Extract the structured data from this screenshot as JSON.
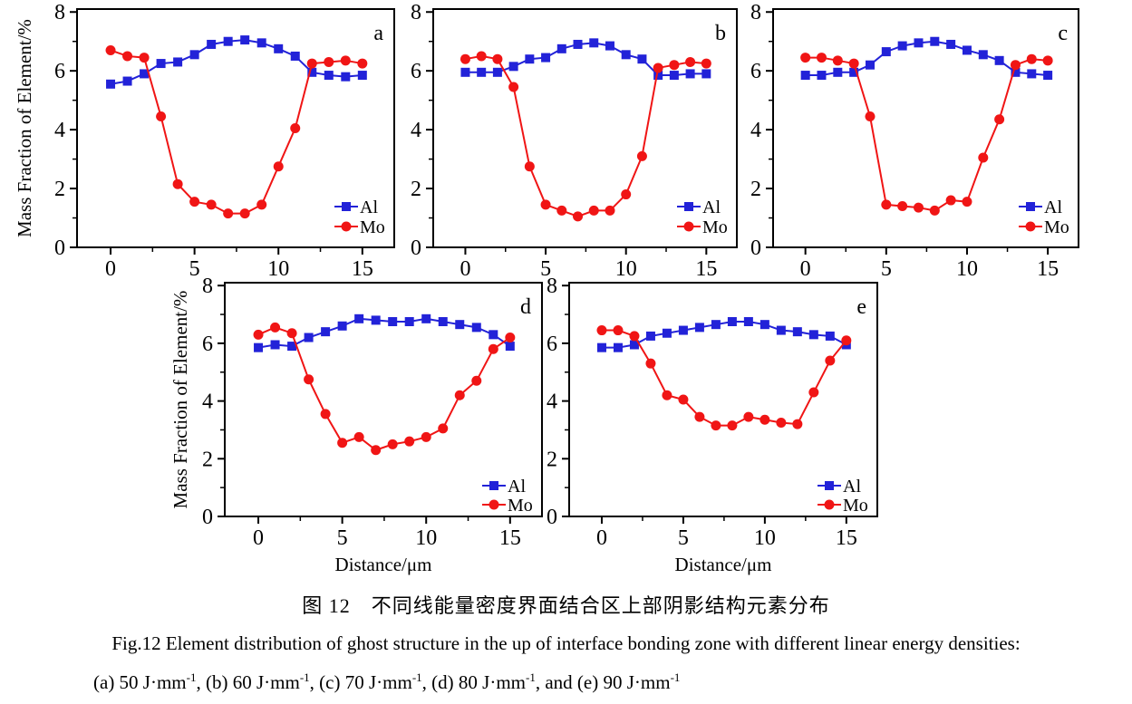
{
  "figure": {
    "caption_cn": "图 12　不同线能量密度界面结合区上部阴影结构元素分布",
    "caption_en": "Fig.12  Element distribution of ghost structure in the up of interface bonding zone with different linear energy densities:",
    "caption_energy_segments": [
      {
        "text": "(a) 50 J·mm"
      },
      {
        "text": "-1",
        "sup": true
      },
      {
        "text": ", (b) 60 J·mm"
      },
      {
        "text": "-1",
        "sup": true
      },
      {
        "text": ", (c) 70 J·mm"
      },
      {
        "text": "-1",
        "sup": true
      },
      {
        "text": ", (d) 80 J·mm"
      },
      {
        "text": "-1",
        "sup": true
      },
      {
        "text": ", and (e) 90 J·mm"
      },
      {
        "text": "-1",
        "sup": true
      }
    ]
  },
  "colors": {
    "al": "#2222d8",
    "mo": "#f01515",
    "axis": "#000000"
  },
  "chart_data": [
    {
      "type": "line",
      "panel_label": "a",
      "title": "",
      "xlabel": "",
      "ylabel": "Mass Fraction of Element/%",
      "x": [
        0,
        1,
        2,
        3,
        4,
        5,
        6,
        7,
        8,
        9,
        10,
        11,
        12,
        13,
        14,
        15
      ],
      "series": [
        {
          "name": "Al",
          "color": "#2222d8",
          "marker": "square",
          "values": [
            5.55,
            5.65,
            5.9,
            6.25,
            6.3,
            6.55,
            6.9,
            7.0,
            7.05,
            6.95,
            6.75,
            6.5,
            5.95,
            5.85,
            5.8,
            5.85
          ]
        },
        {
          "name": "Mo",
          "color": "#f01515",
          "marker": "circle",
          "values": [
            6.7,
            6.5,
            6.45,
            4.45,
            2.15,
            1.55,
            1.45,
            1.15,
            1.15,
            1.45,
            2.75,
            4.05,
            6.25,
            6.3,
            6.35,
            6.25
          ]
        }
      ],
      "xticks": [
        0,
        5,
        10,
        15
      ],
      "yticks": [
        0,
        2,
        4,
        6,
        8
      ],
      "xlim": [
        -2,
        16.9
      ],
      "ylim": [
        0,
        8.1
      ],
      "grid": false,
      "legend_position": "lower right"
    },
    {
      "type": "line",
      "panel_label": "b",
      "title": "",
      "xlabel": "",
      "ylabel": "",
      "x": [
        0,
        1,
        2,
        3,
        4,
        5,
        6,
        7,
        8,
        9,
        10,
        11,
        12,
        13,
        14,
        15
      ],
      "series": [
        {
          "name": "Al",
          "color": "#2222d8",
          "marker": "square",
          "values": [
            5.95,
            5.95,
            5.95,
            6.15,
            6.4,
            6.45,
            6.75,
            6.9,
            6.95,
            6.85,
            6.55,
            6.4,
            5.85,
            5.85,
            5.9,
            5.9
          ]
        },
        {
          "name": "Mo",
          "color": "#f01515",
          "marker": "circle",
          "values": [
            6.4,
            6.5,
            6.4,
            5.45,
            2.75,
            1.45,
            1.25,
            1.05,
            1.25,
            1.25,
            1.8,
            3.1,
            6.1,
            6.2,
            6.3,
            6.25
          ]
        }
      ],
      "xticks": [
        0,
        5,
        10,
        15
      ],
      "yticks": [
        0,
        2,
        4,
        6,
        8
      ],
      "xlim": [
        -2,
        16.9
      ],
      "ylim": [
        0,
        8.1
      ],
      "grid": false,
      "legend_position": "lower right"
    },
    {
      "type": "line",
      "panel_label": "c",
      "title": "",
      "xlabel": "",
      "ylabel": "",
      "x": [
        0,
        1,
        2,
        3,
        4,
        5,
        6,
        7,
        8,
        9,
        10,
        11,
        12,
        13,
        14,
        15
      ],
      "series": [
        {
          "name": "Al",
          "color": "#2222d8",
          "marker": "square",
          "values": [
            5.85,
            5.85,
            5.95,
            5.95,
            6.2,
            6.65,
            6.85,
            6.95,
            7.0,
            6.9,
            6.7,
            6.55,
            6.35,
            5.95,
            5.9,
            5.85
          ]
        },
        {
          "name": "Mo",
          "color": "#f01515",
          "marker": "circle",
          "values": [
            6.45,
            6.45,
            6.35,
            6.25,
            4.45,
            1.45,
            1.4,
            1.35,
            1.25,
            1.6,
            1.55,
            3.05,
            4.35,
            6.2,
            6.4,
            6.35
          ]
        }
      ],
      "xticks": [
        0,
        5,
        10,
        15
      ],
      "yticks": [
        0,
        2,
        4,
        6,
        8
      ],
      "xlim": [
        -2,
        16.9
      ],
      "ylim": [
        0,
        8.1
      ],
      "grid": false,
      "legend_position": "lower right"
    },
    {
      "type": "line",
      "panel_label": "d",
      "title": "",
      "xlabel": "Distance/μm",
      "ylabel": "Mass Fraction of Element/%",
      "x": [
        0,
        1,
        2,
        3,
        4,
        5,
        6,
        7,
        8,
        9,
        10,
        11,
        12,
        13,
        14,
        15
      ],
      "series": [
        {
          "name": "Al",
          "color": "#2222d8",
          "marker": "square",
          "values": [
            5.85,
            5.95,
            5.9,
            6.2,
            6.4,
            6.6,
            6.85,
            6.8,
            6.75,
            6.75,
            6.85,
            6.75,
            6.65,
            6.55,
            6.3,
            5.9
          ]
        },
        {
          "name": "Mo",
          "color": "#f01515",
          "marker": "circle",
          "values": [
            6.3,
            6.55,
            6.35,
            4.75,
            3.55,
            2.55,
            2.75,
            2.3,
            2.5,
            2.6,
            2.75,
            3.05,
            4.2,
            4.7,
            5.8,
            6.2
          ]
        }
      ],
      "xticks": [
        0,
        5,
        10,
        15
      ],
      "yticks": [
        0,
        2,
        4,
        6,
        8
      ],
      "xlim": [
        -2,
        16.9
      ],
      "ylim": [
        0,
        8.1
      ],
      "grid": false,
      "legend_position": "lower right"
    },
    {
      "type": "line",
      "panel_label": "e",
      "title": "",
      "xlabel": "Distance/μm",
      "ylabel": "",
      "x": [
        0,
        1,
        2,
        3,
        4,
        5,
        6,
        7,
        8,
        9,
        10,
        11,
        12,
        13,
        14,
        15
      ],
      "series": [
        {
          "name": "Al",
          "color": "#2222d8",
          "marker": "square",
          "values": [
            5.85,
            5.85,
            5.95,
            6.25,
            6.35,
            6.45,
            6.55,
            6.65,
            6.75,
            6.75,
            6.65,
            6.45,
            6.4,
            6.3,
            6.25,
            5.95
          ]
        },
        {
          "name": "Mo",
          "color": "#f01515",
          "marker": "circle",
          "values": [
            6.45,
            6.45,
            6.25,
            5.3,
            4.2,
            4.05,
            3.45,
            3.15,
            3.15,
            3.45,
            3.35,
            3.25,
            3.2,
            4.3,
            5.4,
            6.1
          ]
        }
      ],
      "xticks": [
        0,
        5,
        10,
        15
      ],
      "yticks": [
        0,
        2,
        4,
        6,
        8
      ],
      "xlim": [
        -2,
        16.9
      ],
      "ylim": [
        0,
        8.1
      ],
      "grid": false,
      "legend_position": "lower right"
    }
  ]
}
